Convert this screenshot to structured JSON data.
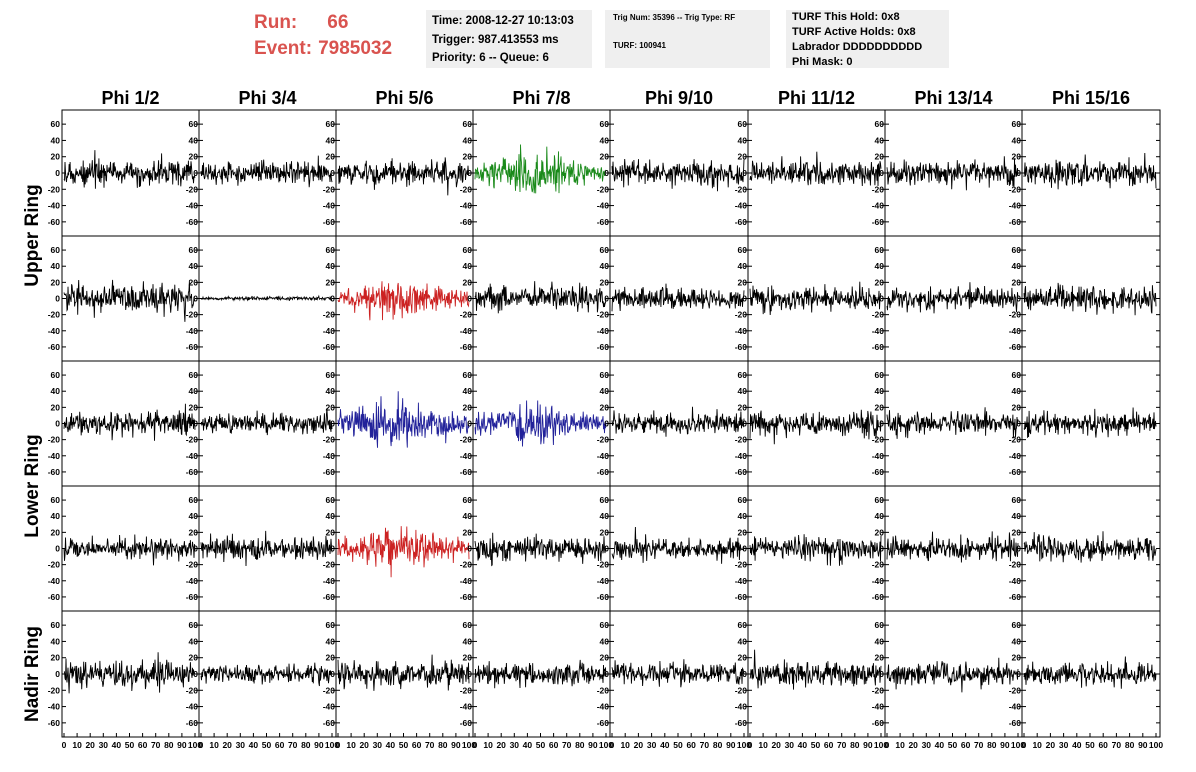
{
  "run_info": {
    "run_label": "Run:",
    "run_value": "66",
    "event_label": "Event:",
    "event_value": "7985032"
  },
  "time_box": {
    "time": "Time: 2008-12-27 10:13:03",
    "trigger": "Trigger: 987.413553 ms",
    "priority": "Priority: 6 -- Queue: 6"
  },
  "trig_box": {
    "trig": "Trig Num: 35396 -- Trig Type: RF",
    "turf": "TURF: 100941"
  },
  "turf_box": {
    "this_hold": "TURF This Hold: 0x8",
    "active_holds": "TURF Active Holds: 0x8",
    "labrador": "Labrador DDDDDDDDDD",
    "phi_mask": "Phi Mask: 0"
  },
  "chart_data": {
    "type": "line",
    "columns": [
      "Phi 1/2",
      "Phi 3/4",
      "Phi 5/6",
      "Phi 7/8",
      "Phi 9/10",
      "Phi 11/12",
      "Phi 13/14",
      "Phi 15/16"
    ],
    "ring_labels": [
      "Upper Ring",
      "Lower Ring",
      "Nadir Ring"
    ],
    "rows": 5,
    "y_ticks": [
      -60,
      -40,
      -20,
      0,
      20,
      40,
      60
    ],
    "ylim": [
      -70,
      70
    ],
    "x_ticks": [
      0,
      10,
      20,
      30,
      40,
      50,
      60,
      70,
      80,
      90,
      100
    ],
    "x_tick_labels": [
      "0",
      "10",
      "20",
      "30",
      "40",
      "50",
      "60",
      "70",
      "80",
      "90",
      "100"
    ],
    "xlim": [
      0,
      100
    ],
    "colors": {
      "default": "#000000",
      "green": "#1a8a1a",
      "red": "#cc2222",
      "blue": "#22229a"
    },
    "panels": [
      {
        "row": 0,
        "col": 0,
        "color": "default",
        "amplitude": 14
      },
      {
        "row": 0,
        "col": 1,
        "color": "default",
        "amplitude": 11
      },
      {
        "row": 0,
        "col": 2,
        "color": "default",
        "amplitude": 13
      },
      {
        "row": 0,
        "col": 3,
        "color": "green",
        "amplitude": 22
      },
      {
        "row": 0,
        "col": 4,
        "color": "default",
        "amplitude": 13
      },
      {
        "row": 0,
        "col": 5,
        "color": "default",
        "amplitude": 13
      },
      {
        "row": 0,
        "col": 6,
        "color": "default",
        "amplitude": 13
      },
      {
        "row": 0,
        "col": 7,
        "color": "default",
        "amplitude": 15
      },
      {
        "row": 1,
        "col": 0,
        "color": "default",
        "amplitude": 15
      },
      {
        "row": 1,
        "col": 1,
        "color": "default",
        "amplitude": 2
      },
      {
        "row": 1,
        "col": 2,
        "color": "red",
        "amplitude": 22
      },
      {
        "row": 1,
        "col": 3,
        "color": "default",
        "amplitude": 14
      },
      {
        "row": 1,
        "col": 4,
        "color": "default",
        "amplitude": 12
      },
      {
        "row": 1,
        "col": 5,
        "color": "default",
        "amplitude": 13
      },
      {
        "row": 1,
        "col": 6,
        "color": "default",
        "amplitude": 13
      },
      {
        "row": 1,
        "col": 7,
        "color": "default",
        "amplitude": 15
      },
      {
        "row": 2,
        "col": 0,
        "color": "default",
        "amplitude": 14
      },
      {
        "row": 2,
        "col": 1,
        "color": "default",
        "amplitude": 11
      },
      {
        "row": 2,
        "col": 2,
        "color": "blue",
        "amplitude": 24
      },
      {
        "row": 2,
        "col": 3,
        "color": "blue",
        "amplitude": 20
      },
      {
        "row": 2,
        "col": 4,
        "color": "default",
        "amplitude": 12
      },
      {
        "row": 2,
        "col": 5,
        "color": "default",
        "amplitude": 13
      },
      {
        "row": 2,
        "col": 6,
        "color": "default",
        "amplitude": 13
      },
      {
        "row": 2,
        "col": 7,
        "color": "default",
        "amplitude": 13
      },
      {
        "row": 3,
        "col": 0,
        "color": "default",
        "amplitude": 12
      },
      {
        "row": 3,
        "col": 1,
        "color": "default",
        "amplitude": 13
      },
      {
        "row": 3,
        "col": 2,
        "color": "red",
        "amplitude": 22
      },
      {
        "row": 3,
        "col": 3,
        "color": "default",
        "amplitude": 14
      },
      {
        "row": 3,
        "col": 4,
        "color": "default",
        "amplitude": 12
      },
      {
        "row": 3,
        "col": 5,
        "color": "default",
        "amplitude": 13
      },
      {
        "row": 3,
        "col": 6,
        "color": "default",
        "amplitude": 13
      },
      {
        "row": 3,
        "col": 7,
        "color": "default",
        "amplitude": 14
      },
      {
        "row": 4,
        "col": 0,
        "color": "default",
        "amplitude": 15
      },
      {
        "row": 4,
        "col": 1,
        "color": "default",
        "amplitude": 10
      },
      {
        "row": 4,
        "col": 2,
        "color": "default",
        "amplitude": 14
      },
      {
        "row": 4,
        "col": 3,
        "color": "default",
        "amplitude": 12
      },
      {
        "row": 4,
        "col": 4,
        "color": "default",
        "amplitude": 12
      },
      {
        "row": 4,
        "col": 5,
        "color": "default",
        "amplitude": 13
      },
      {
        "row": 4,
        "col": 6,
        "color": "default",
        "amplitude": 13
      },
      {
        "row": 4,
        "col": 7,
        "color": "default",
        "amplitude": 13
      }
    ]
  }
}
